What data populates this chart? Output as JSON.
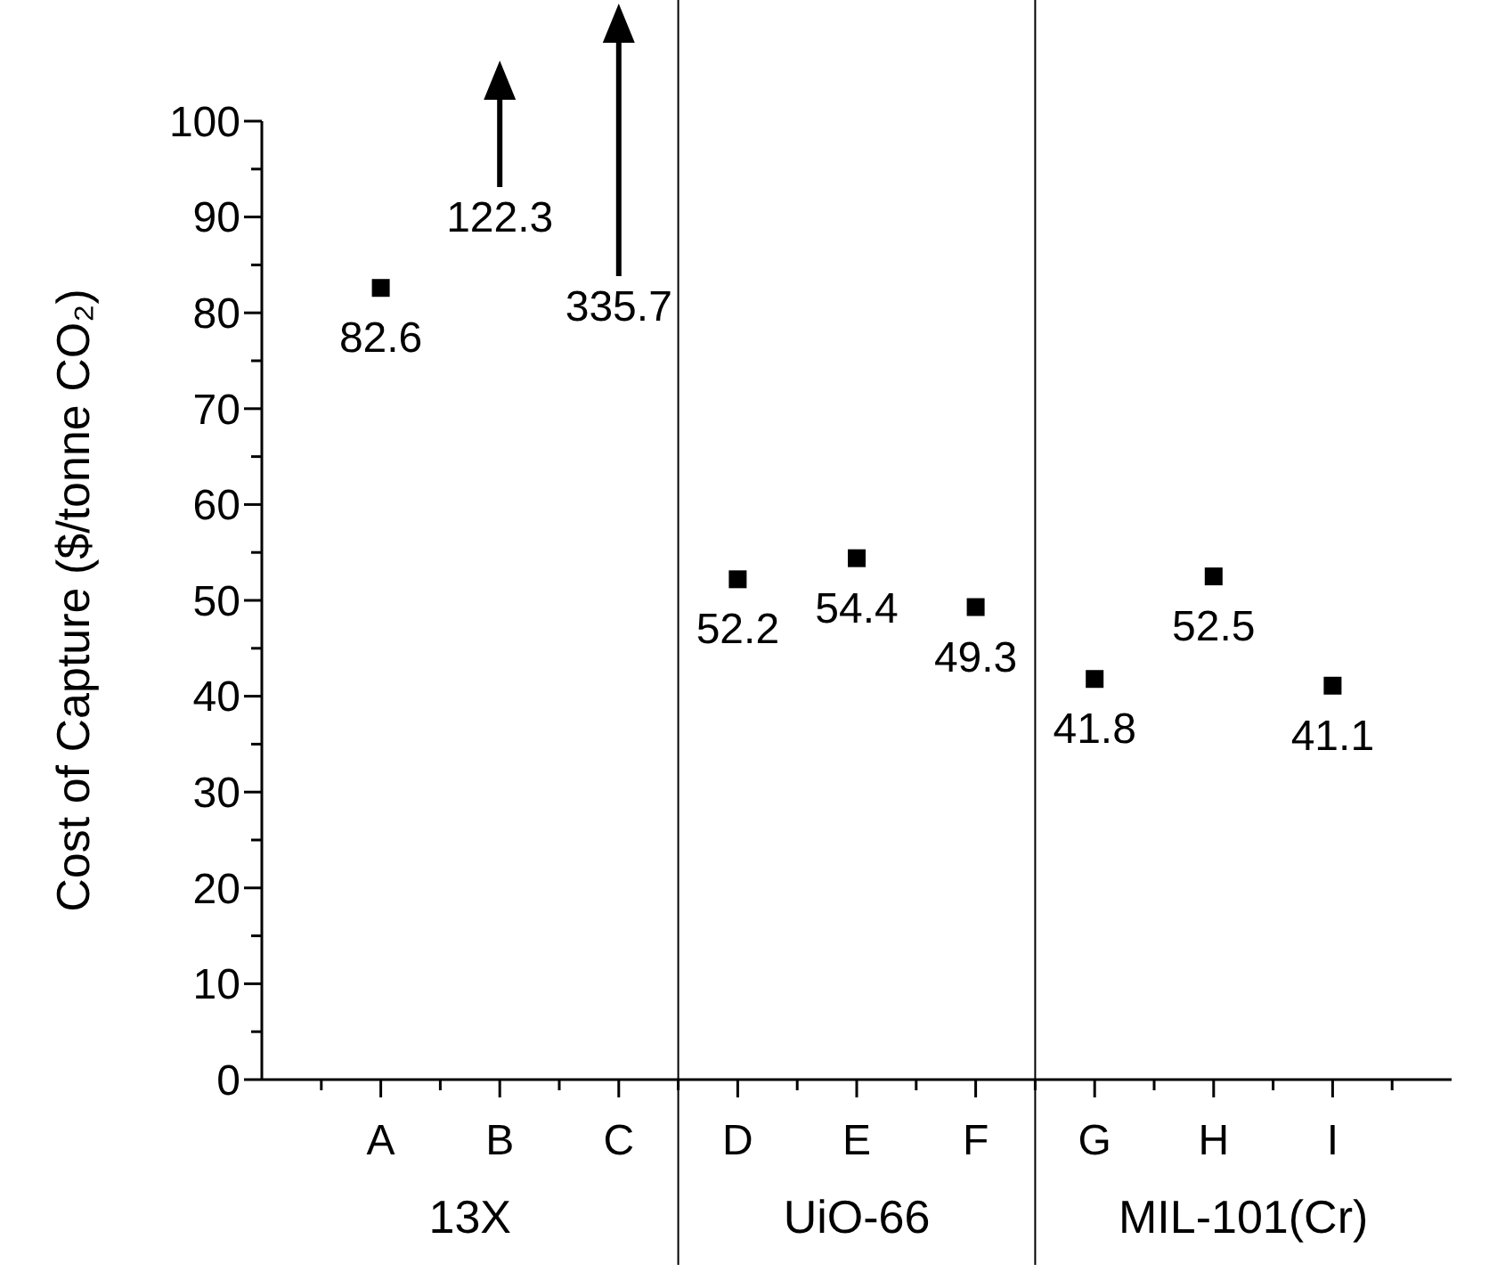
{
  "chart_data": {
    "type": "scatter",
    "ylabel": "Cost of Capture ($/tonne CO₂)",
    "categories": [
      "A",
      "B",
      "C",
      "D",
      "E",
      "F",
      "G",
      "H",
      "I"
    ],
    "values": [
      82.6,
      null,
      null,
      52.2,
      54.4,
      49.3,
      41.8,
      52.5,
      41.1
    ],
    "color": "#000000",
    "marker": "square",
    "data_labels": true,
    "ylim": [
      0,
      100
    ],
    "yticks": [
      0,
      10,
      20,
      30,
      40,
      50,
      60,
      70,
      80,
      90,
      100
    ],
    "annotations": [
      "13X",
      "UiO-66",
      "MIL-101(Cr)",
      "122.3",
      "335.7"
    ],
    "grid": false
  }
}
